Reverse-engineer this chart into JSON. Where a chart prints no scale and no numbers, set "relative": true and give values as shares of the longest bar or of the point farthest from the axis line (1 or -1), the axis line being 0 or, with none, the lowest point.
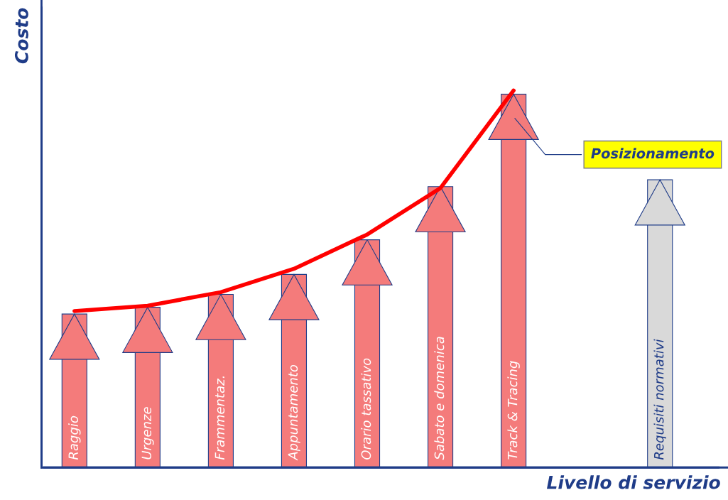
{
  "chart_data": {
    "type": "bar",
    "relative": true,
    "xlabel": "Livello di servizio",
    "ylabel": "Costo",
    "categories": [
      "Raggio",
      "Urgenze",
      "Frammentaz.",
      "Appuntamento",
      "Orario tassativo",
      "Sabato e domenica",
      "Track & Tracing",
      null,
      "Requisiti normativi"
    ],
    "series": [
      {
        "values": [
          0.407,
          0.425,
          0.459,
          0.512,
          0.604,
          0.745,
          0.99,
          null,
          0.763
        ],
        "colors": [
          "#f47b7b",
          "#f47b7b",
          "#f47b7b",
          "#f47b7b",
          "#f47b7b",
          "#f47b7b",
          "#f47b7b",
          "#d9d9d9",
          "#d9d9d9"
        ]
      },
      {
        "type": "line",
        "color": "#ff0000",
        "values": [
          0.415,
          0.429,
          0.465,
          0.527,
          0.618,
          0.741,
          1.0,
          null,
          null
        ]
      }
    ],
    "annotations": [
      "Posizionamento"
    ]
  }
}
